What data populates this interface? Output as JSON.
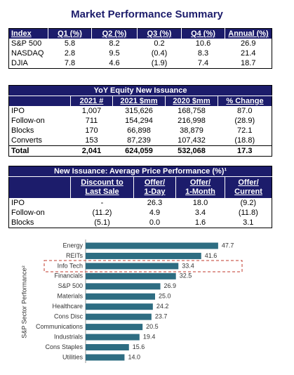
{
  "title": "Market Performance Summary",
  "table1": {
    "header": [
      "Index",
      "Q1 (%)",
      "Q2 (%)",
      "Q3 (%)",
      "Q4 (%)",
      "Annual (%)"
    ],
    "rows": [
      [
        "S&P 500",
        "5.8",
        "8.2",
        "0.2",
        "10.6",
        "26.9"
      ],
      [
        "NASDAQ",
        "2.8",
        "9.5",
        "(0.4)",
        "8.3",
        "21.4"
      ],
      [
        "DJIA",
        "7.8",
        "4.6",
        "(1.9)",
        "7.4",
        "18.7"
      ]
    ]
  },
  "table2": {
    "title": "YoY Equity New Issuance",
    "header": [
      "2021 #",
      "2021 $mm",
      "2020 $mm",
      "% Change"
    ],
    "rows": [
      [
        "IPO",
        "1,007",
        "315,626",
        "168,758",
        "87.0"
      ],
      [
        "Follow-on",
        "711",
        "154,294",
        "216,998",
        "(28.9)"
      ],
      [
        "Blocks",
        "170",
        "66,898",
        "38,879",
        "72.1"
      ],
      [
        "Converts",
        "153",
        "87,239",
        "107,432",
        "(18.8)"
      ]
    ],
    "total": [
      "Total",
      "2,041",
      "624,059",
      "532,068",
      "17.3"
    ]
  },
  "table3": {
    "title": "New Issuance: Average Price Performance (%)¹",
    "header": [
      [
        "Discount to",
        "Last Sale"
      ],
      [
        "Offer/",
        "1-Day"
      ],
      [
        "Offer/",
        "1-Month"
      ],
      [
        "Offer/",
        "Current"
      ]
    ],
    "rows": [
      [
        "IPO",
        "-",
        "26.3",
        "18.0",
        "(9.2)"
      ],
      [
        "Follow-on",
        "(11.2)",
        "4.9",
        "3.4",
        "(11.8)"
      ],
      [
        "Blocks",
        "(5.1)",
        "0.0",
        "1.6",
        "3.1"
      ]
    ]
  },
  "chart": {
    "type": "bar",
    "axis_label": "S&P Sector Performance²",
    "color": "#2e6d82",
    "categories": [
      "Energy",
      "REITs",
      "Info Tech",
      "Financials",
      "S&P 500",
      "Materials",
      "Healthcare",
      "Cons Disc",
      "Communications",
      "Industrials",
      "Cons Staples",
      "Utilities"
    ],
    "values": [
      47.7,
      41.6,
      33.4,
      32.5,
      26.9,
      25.0,
      24.2,
      23.7,
      20.5,
      19.4,
      15.6,
      14.0
    ],
    "value_labels": [
      "47.7",
      "41.6",
      "33.4",
      "32.5",
      "26.9",
      "25.0",
      "24.2",
      "23.7",
      "20.5",
      "19.4",
      "15.6",
      "14.0"
    ]
  }
}
